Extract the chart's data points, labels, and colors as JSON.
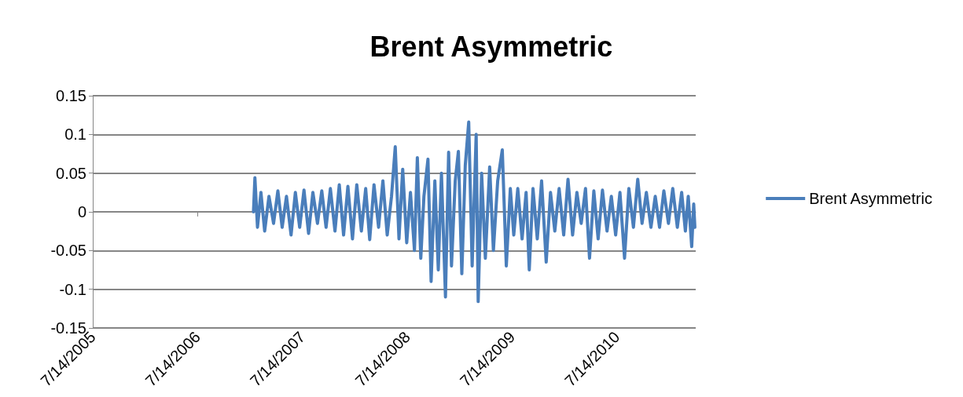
{
  "chart_data": {
    "type": "line",
    "title": "Brent Asymmetric",
    "xlim": [
      "2005-07-14",
      "2011-04-15"
    ],
    "xticks": [
      {
        "value": "2005-07-14",
        "label": "7/14/2005"
      },
      {
        "value": "2006-07-14",
        "label": "7/14/2006"
      },
      {
        "value": "2007-07-14",
        "label": "7/14/2007"
      },
      {
        "value": "2008-07-14",
        "label": "7/14/2008"
      },
      {
        "value": "2009-07-14",
        "label": "7/14/2009"
      },
      {
        "value": "2010-07-14",
        "label": "7/14/2010"
      }
    ],
    "ylim": [
      -0.15,
      0.15
    ],
    "yticks": [
      -0.15,
      -0.1,
      -0.05,
      0,
      0.05,
      0.1,
      0.15
    ],
    "grid": "y",
    "legend": "right",
    "line_style": "solid",
    "series": [
      {
        "name": "Brent Asymmetric",
        "color": "#4a7ebb",
        "x": [
          "2007-01-25",
          "2007-01-30",
          "2007-02-08",
          "2007-02-20",
          "2007-03-05",
          "2007-03-20",
          "2007-04-05",
          "2007-04-20",
          "2007-05-05",
          "2007-05-20",
          "2007-06-05",
          "2007-06-20",
          "2007-07-05",
          "2007-07-20",
          "2007-08-05",
          "2007-08-20",
          "2007-09-05",
          "2007-09-20",
          "2007-10-05",
          "2007-10-20",
          "2007-11-05",
          "2007-11-20",
          "2007-12-05",
          "2007-12-20",
          "2008-01-05",
          "2008-01-20",
          "2008-02-05",
          "2008-02-20",
          "2008-03-05",
          "2008-03-20",
          "2008-04-05",
          "2008-04-20",
          "2008-05-05",
          "2008-05-20",
          "2008-06-02",
          "2008-06-15",
          "2008-06-28",
          "2008-07-12",
          "2008-07-25",
          "2008-08-08",
          "2008-08-18",
          "2008-08-30",
          "2008-09-10",
          "2008-09-24",
          "2008-10-05",
          "2008-10-18",
          "2008-10-30",
          "2008-11-10",
          "2008-11-24",
          "2008-12-05",
          "2008-12-15",
          "2008-12-28",
          "2009-01-08",
          "2009-01-20",
          "2009-02-01",
          "2009-02-13",
          "2009-02-25",
          "2009-03-11",
          "2009-03-18",
          "2009-03-30",
          "2009-04-12",
          "2009-04-27",
          "2009-05-10",
          "2009-05-25",
          "2009-06-10",
          "2009-06-24",
          "2009-07-08",
          "2009-07-20",
          "2009-08-03",
          "2009-08-18",
          "2009-09-01",
          "2009-09-12",
          "2009-09-25",
          "2009-10-10",
          "2009-10-25",
          "2009-11-10",
          "2009-11-25",
          "2009-12-10",
          "2009-12-25",
          "2010-01-10",
          "2010-01-25",
          "2010-02-10",
          "2010-02-25",
          "2010-03-12",
          "2010-03-27",
          "2010-04-10",
          "2010-04-25",
          "2010-05-10",
          "2010-05-25",
          "2010-06-10",
          "2010-06-25",
          "2010-07-10",
          "2010-07-25",
          "2010-08-10",
          "2010-08-25",
          "2010-09-10",
          "2010-09-25",
          "2010-10-10",
          "2010-10-25",
          "2010-11-10",
          "2010-11-25",
          "2010-12-10",
          "2010-12-25",
          "2011-01-10",
          "2011-01-25",
          "2011-02-10",
          "2011-02-25",
          "2011-03-10",
          "2011-03-20",
          "2011-04-01",
          "2011-04-08",
          "2011-04-12"
        ],
        "values": [
          0.0,
          0.044,
          -0.02,
          0.025,
          -0.025,
          0.02,
          -0.015,
          0.027,
          -0.02,
          0.02,
          -0.03,
          0.025,
          -0.02,
          0.028,
          -0.028,
          0.025,
          -0.015,
          0.027,
          -0.02,
          0.03,
          -0.025,
          0.035,
          -0.03,
          0.033,
          -0.035,
          0.035,
          -0.025,
          0.03,
          -0.036,
          0.035,
          -0.02,
          0.04,
          -0.03,
          0.02,
          0.084,
          -0.035,
          0.055,
          -0.04,
          0.025,
          -0.05,
          0.07,
          -0.06,
          0.02,
          0.068,
          -0.09,
          0.04,
          -0.075,
          0.05,
          -0.11,
          0.077,
          -0.07,
          0.04,
          0.078,
          -0.08,
          0.06,
          0.116,
          -0.07,
          0.1,
          -0.116,
          0.05,
          -0.06,
          0.058,
          -0.05,
          0.04,
          0.08,
          -0.07,
          0.03,
          -0.03,
          0.03,
          -0.035,
          0.025,
          -0.075,
          0.03,
          -0.035,
          0.04,
          -0.065,
          0.025,
          -0.025,
          0.03,
          -0.03,
          0.042,
          -0.03,
          0.025,
          -0.015,
          0.03,
          -0.06,
          0.027,
          -0.035,
          0.028,
          -0.025,
          0.02,
          -0.03,
          0.025,
          -0.06,
          0.03,
          -0.02,
          0.042,
          -0.015,
          0.025,
          -0.02,
          0.02,
          -0.02,
          0.027,
          -0.015,
          0.03,
          -0.02,
          0.025,
          -0.025,
          0.02,
          -0.045,
          0.01,
          -0.02
        ]
      }
    ]
  }
}
